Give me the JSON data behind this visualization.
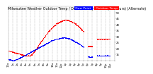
{
  "bg_color": "#ffffff",
  "plot_bg_color": "#ffffff",
  "text_color": "#000000",
  "grid_color": "#aaaaaa",
  "temp_color": "#ff0000",
  "dewpoint_color": "#0000ff",
  "legend_temp_label": "Outdoor Temp",
  "legend_dew_label": "Dew Point",
  "ylim": [
    10,
    55
  ],
  "yticks": [
    15,
    20,
    25,
    30,
    35,
    40,
    45,
    50
  ],
  "xlim": [
    0,
    1440
  ],
  "num_grid_lines": 24,
  "title_text": "Milwaukee Weather Outdoor Temp / Dew Point by Minute (24 Hours) (Alternate)",
  "title_fontsize": 3.5,
  "tick_fontsize": 2.8,
  "legend_fontsize": 3.2,
  "temp_segments": [
    {
      "x_start": 0,
      "x_end": 60,
      "y_start": 18,
      "y_end": 17
    },
    {
      "x_start": 60,
      "x_end": 120,
      "y_start": 17,
      "y_end": 16
    },
    {
      "x_start": 120,
      "x_end": 180,
      "y_start": 16,
      "y_end": 15
    },
    {
      "x_start": 180,
      "x_end": 240,
      "y_start": 15,
      "y_end": 14
    },
    {
      "x_start": 240,
      "x_end": 300,
      "y_start": 14,
      "y_end": 14
    },
    {
      "x_start": 300,
      "x_end": 360,
      "y_start": 14,
      "y_end": 18
    },
    {
      "x_start": 360,
      "x_end": 420,
      "y_start": 18,
      "y_end": 24
    },
    {
      "x_start": 420,
      "x_end": 480,
      "y_start": 24,
      "y_end": 29
    },
    {
      "x_start": 480,
      "x_end": 540,
      "y_start": 29,
      "y_end": 34
    },
    {
      "x_start": 540,
      "x_end": 600,
      "y_start": 34,
      "y_end": 38
    },
    {
      "x_start": 600,
      "x_end": 660,
      "y_start": 38,
      "y_end": 41
    },
    {
      "x_start": 660,
      "x_end": 720,
      "y_start": 41,
      "y_end": 43
    },
    {
      "x_start": 720,
      "x_end": 780,
      "y_start": 43,
      "y_end": 44
    },
    {
      "x_start": 780,
      "x_end": 840,
      "y_start": 44,
      "y_end": 43
    },
    {
      "x_start": 840,
      "x_end": 900,
      "y_start": 43,
      "y_end": 41
    },
    {
      "x_start": 900,
      "x_end": 960,
      "y_start": 41,
      "y_end": 38
    },
    {
      "x_start": 960,
      "x_end": 1020,
      "y_start": 38,
      "y_end": 34
    },
    {
      "x_start": 1080,
      "x_end": 1140,
      "y_start": 22,
      "y_end": 22
    },
    {
      "x_start": 1200,
      "x_end": 1380,
      "y_start": 28,
      "y_end": 28
    }
  ],
  "dew_segments": [
    {
      "x_start": 0,
      "x_end": 60,
      "y_start": 11,
      "y_end": 10
    },
    {
      "x_start": 60,
      "x_end": 120,
      "y_start": 10,
      "y_end": 11
    },
    {
      "x_start": 120,
      "x_end": 180,
      "y_start": 11,
      "y_end": 13
    },
    {
      "x_start": 180,
      "x_end": 240,
      "y_start": 13,
      "y_end": 15
    },
    {
      "x_start": 240,
      "x_end": 300,
      "y_start": 15,
      "y_end": 17
    },
    {
      "x_start": 300,
      "x_end": 360,
      "y_start": 17,
      "y_end": 19
    },
    {
      "x_start": 360,
      "x_end": 420,
      "y_start": 19,
      "y_end": 21
    },
    {
      "x_start": 420,
      "x_end": 480,
      "y_start": 21,
      "y_end": 23
    },
    {
      "x_start": 480,
      "x_end": 540,
      "y_start": 23,
      "y_end": 25
    },
    {
      "x_start": 540,
      "x_end": 600,
      "y_start": 25,
      "y_end": 27
    },
    {
      "x_start": 600,
      "x_end": 660,
      "y_start": 27,
      "y_end": 28
    },
    {
      "x_start": 660,
      "x_end": 720,
      "y_start": 28,
      "y_end": 29
    },
    {
      "x_start": 720,
      "x_end": 780,
      "y_start": 29,
      "y_end": 29
    },
    {
      "x_start": 780,
      "x_end": 840,
      "y_start": 29,
      "y_end": 28
    },
    {
      "x_start": 840,
      "x_end": 900,
      "y_start": 28,
      "y_end": 26
    },
    {
      "x_start": 900,
      "x_end": 960,
      "y_start": 26,
      "y_end": 24
    },
    {
      "x_start": 960,
      "x_end": 1020,
      "y_start": 24,
      "y_end": 21
    },
    {
      "x_start": 1080,
      "x_end": 1140,
      "y_start": 13,
      "y_end": 13
    },
    {
      "x_start": 1200,
      "x_end": 1380,
      "y_start": 14,
      "y_end": 14
    }
  ],
  "xtick_positions": [
    0,
    60,
    120,
    180,
    240,
    300,
    360,
    420,
    480,
    540,
    600,
    660,
    720,
    780,
    840,
    900,
    960,
    1020,
    1080,
    1140,
    1200,
    1260,
    1320,
    1380,
    1440
  ],
  "xtick_labels": [
    "12a",
    "1a",
    "2a",
    "3a",
    "4a",
    "5a",
    "6a",
    "7a",
    "8a",
    "9a",
    "10a",
    "11a",
    "12p",
    "1p",
    "2p",
    "3p",
    "4p",
    "5p",
    "6p",
    "7p",
    "8p",
    "9p",
    "10p",
    "11p",
    ""
  ]
}
